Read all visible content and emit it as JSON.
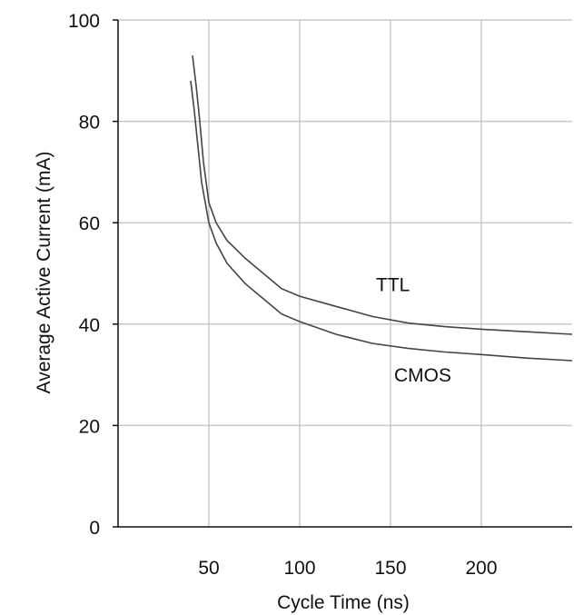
{
  "chart_data": {
    "type": "line",
    "title": "",
    "xlabel": "Cycle Time (ns)",
    "ylabel": "Average Active Current (mA)",
    "xlim": [
      0,
      250
    ],
    "ylim": [
      0,
      100
    ],
    "xticks": [
      50,
      100,
      150,
      200
    ],
    "yticks": [
      0,
      20,
      40,
      60,
      80,
      100
    ],
    "grid": true,
    "legend": "none",
    "series": [
      {
        "name": "TTL",
        "color": "#444444",
        "points": [
          [
            41,
            93
          ],
          [
            43,
            87
          ],
          [
            45,
            80
          ],
          [
            47,
            72
          ],
          [
            50,
            64
          ],
          [
            54,
            60
          ],
          [
            60,
            56.5
          ],
          [
            70,
            53
          ],
          [
            80,
            50
          ],
          [
            90,
            47
          ],
          [
            100,
            45.5
          ],
          [
            120,
            43.5
          ],
          [
            140,
            41.5
          ],
          [
            160,
            40.2
          ],
          [
            180,
            39.5
          ],
          [
            200,
            39
          ],
          [
            225,
            38.5
          ],
          [
            250,
            38
          ]
        ]
      },
      {
        "name": "CMOS",
        "color": "#444444",
        "points": [
          [
            40,
            88
          ],
          [
            42,
            82
          ],
          [
            44,
            75
          ],
          [
            46,
            68
          ],
          [
            50,
            60
          ],
          [
            54,
            56
          ],
          [
            60,
            52
          ],
          [
            70,
            48
          ],
          [
            80,
            45
          ],
          [
            90,
            42
          ],
          [
            100,
            40.5
          ],
          [
            120,
            38
          ],
          [
            140,
            36.2
          ],
          [
            160,
            35.2
          ],
          [
            180,
            34.5
          ],
          [
            200,
            34
          ],
          [
            225,
            33.3
          ],
          [
            250,
            32.8
          ]
        ]
      }
    ]
  }
}
